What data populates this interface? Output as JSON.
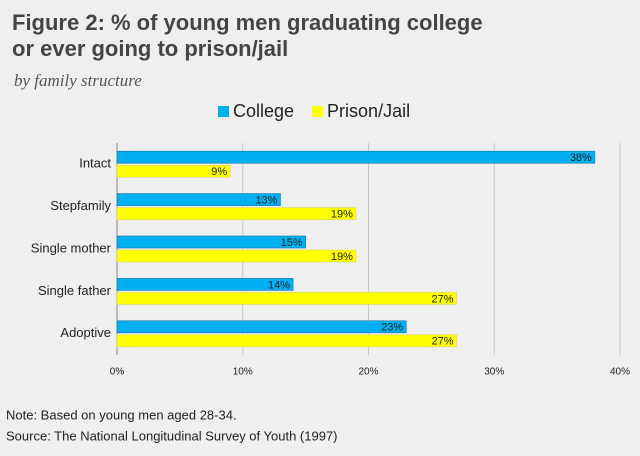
{
  "chart_data": {
    "type": "bar",
    "orientation": "horizontal",
    "title": [
      "Figure 2: % of young men graduating college",
      "or ever going to prison/jail"
    ],
    "subtitle": "by family structure",
    "categories": [
      "Intact",
      "Stepfamily",
      "Single mother",
      "Single father",
      "Adoptive"
    ],
    "series": [
      {
        "name": "College",
        "color": "#00b0f0",
        "values": [
          38,
          13,
          15,
          14,
          23
        ],
        "value_labels": [
          "38%",
          "13%",
          "15%",
          "14%",
          "23%"
        ]
      },
      {
        "name": "Prison/Jail",
        "color": "#ffff00",
        "values": [
          9,
          19,
          19,
          27,
          27
        ],
        "value_labels": [
          "9%",
          "19%",
          "19%",
          "27%",
          "27%"
        ]
      }
    ],
    "xlim": [
      0,
      40
    ],
    "xticks": [
      {
        "value": 0,
        "label": "0%"
      },
      {
        "value": 10,
        "label": "10%"
      },
      {
        "value": 20,
        "label": "20%"
      },
      {
        "value": 30,
        "label": "30%"
      },
      {
        "value": 40,
        "label": "40%"
      }
    ],
    "grid": true,
    "legend": "top",
    "notes": [
      "Note: Based on young men aged 28-34.",
      "Source: The National Longitudinal Survey of Youth (1997)"
    ]
  }
}
